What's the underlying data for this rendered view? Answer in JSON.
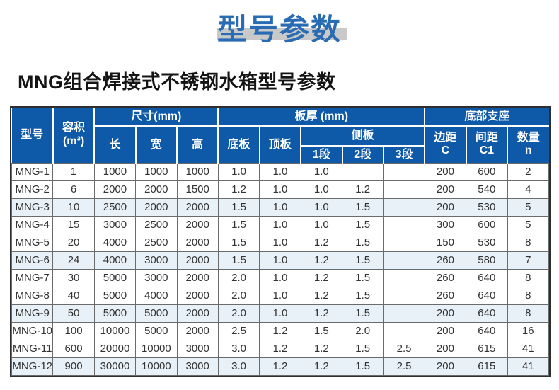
{
  "page": {
    "title": "型号参数",
    "subtitle": "MNG组合焊接式不锈钢水箱型号参数"
  },
  "colors": {
    "header_blue": "#0e59a8",
    "title_blue": "#2a6cb4",
    "title_bar_gray": "#c9c9c9",
    "row_stripe": "#e8f1f8",
    "body_text": "#333333"
  },
  "table": {
    "header": {
      "model": "型号",
      "volume_line1": "容积",
      "volume_line2": "(m³)",
      "dimensions_group": "尺寸(mm)",
      "length": "长",
      "width": "宽",
      "height": "高",
      "plate_thickness_group": "板厚 (mm)",
      "bottom_plate": "底板",
      "top_plate": "顶板",
      "side_plate_group": "侧板",
      "segment1": "1段",
      "segment2": "2段",
      "segment3": "3段",
      "bottom_support_group": "底部支座",
      "edge_line1": "边距",
      "edge_line2": "C",
      "spacing_line1": "间距",
      "spacing_line2": "C1",
      "quantity_line1": "数量",
      "quantity_line2": "n"
    },
    "rows": [
      [
        "MNG-1",
        "1",
        "1000",
        "1000",
        "1000",
        "1.0",
        "1.0",
        "1.0",
        "",
        "",
        "200",
        "600",
        "2"
      ],
      [
        "MNG-2",
        "6",
        "2000",
        "2000",
        "1500",
        "1.2",
        "1.0",
        "1.0",
        "1.2",
        "",
        "200",
        "540",
        "4"
      ],
      [
        "MNG-3",
        "10",
        "2500",
        "2000",
        "2000",
        "1.5",
        "1.0",
        "1.0",
        "1.5",
        "",
        "200",
        "530",
        "5"
      ],
      [
        "MNG-4",
        "15",
        "3000",
        "2500",
        "2000",
        "1.5",
        "1.0",
        "1.0",
        "1.5",
        "",
        "300",
        "600",
        "5"
      ],
      [
        "MNG-5",
        "20",
        "4000",
        "2500",
        "2000",
        "1.5",
        "1.0",
        "1.2",
        "1.5",
        "",
        "150",
        "530",
        "8"
      ],
      [
        "MNG-6",
        "24",
        "4000",
        "3000",
        "2000",
        "1.5",
        "1.0",
        "1.2",
        "1.5",
        "",
        "260",
        "580",
        "7"
      ],
      [
        "MNG-7",
        "30",
        "5000",
        "3000",
        "2000",
        "2.0",
        "1.0",
        "1.2",
        "1.5",
        "",
        "260",
        "640",
        "8"
      ],
      [
        "MNG-8",
        "40",
        "5000",
        "4000",
        "2000",
        "2.0",
        "1.0",
        "1.2",
        "1.5",
        "",
        "260",
        "640",
        "8"
      ],
      [
        "MNG-9",
        "50",
        "5000",
        "5000",
        "2000",
        "2.0",
        "1.0",
        "1.2",
        "1.5",
        "",
        "200",
        "640",
        "8"
      ],
      [
        "MNG-10",
        "100",
        "10000",
        "5000",
        "2000",
        "2.5",
        "1.2",
        "1.5",
        "2.0",
        "",
        "200",
        "640",
        "16"
      ],
      [
        "MNG-11",
        "600",
        "20000",
        "10000",
        "3000",
        "3.0",
        "1.2",
        "1.2",
        "1.5",
        "2.5",
        "200",
        "615",
        "41"
      ],
      [
        "MNG-12",
        "900",
        "30000",
        "10000",
        "3000",
        "3.0",
        "1.2",
        "1.2",
        "1.5",
        "2.5",
        "200",
        "615",
        "41"
      ]
    ]
  }
}
